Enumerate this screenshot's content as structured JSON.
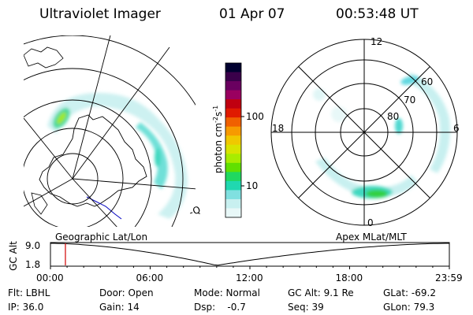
{
  "header": {
    "instrument": "Ultraviolet Imager",
    "date": "01 Apr 07",
    "time": "00:53:48 UT"
  },
  "colorbar": {
    "ticks": [
      "100",
      "10"
    ],
    "unit_label": "photon cm",
    "unit_exp1": "-2",
    "unit_s": "s",
    "unit_exp2": "-1",
    "colors": [
      "#000030",
      "#3a004a",
      "#6a0060",
      "#9a0060",
      "#c00010",
      "#e01a00",
      "#f06000",
      "#f79a00",
      "#f0c800",
      "#d8e400",
      "#a8ec00",
      "#60e000",
      "#20d860",
      "#20d8b0",
      "#80e0e0",
      "#c8f0f0",
      "#e8f8f8"
    ]
  },
  "left_map": {
    "label": "Geographic Lat/Lon",
    "corner_glyph": "-Q"
  },
  "right_map": {
    "label": "Apex MLat/MLT",
    "mlt": {
      "top": "12",
      "left": "18",
      "right": "6",
      "bottom": "0"
    },
    "mlat": [
      "60",
      "70",
      "80"
    ]
  },
  "altitude_plot": {
    "axis_label": "GC Alt",
    "ymax": "9.0",
    "ymin": "1.8",
    "x_ticks": [
      "00:00",
      "06:00",
      "12:00",
      "18:00",
      "23:59"
    ],
    "current_time_hours": 0.9
  },
  "footer": {
    "row1": {
      "flt": "Flt: LBHL",
      "door": "Door: Open",
      "mode": "Mode: Normal",
      "gcalt": "GC Alt: 9.1 Re",
      "glat": "GLat: -69.2"
    },
    "row2": {
      "ip": "IP: 36.0",
      "gain": "Gain: 14",
      "dsp": "Dsp:    -0.7",
      "seq": "Seq: 39",
      "glon": "GLon: 79.3"
    }
  },
  "colors": {
    "marker": "#d00000",
    "coast_blue": "#0000c0",
    "aurora_faint": "#c8f0f0",
    "aurora_mid": "#40d8c0",
    "aurora_bright": "#20d040"
  }
}
